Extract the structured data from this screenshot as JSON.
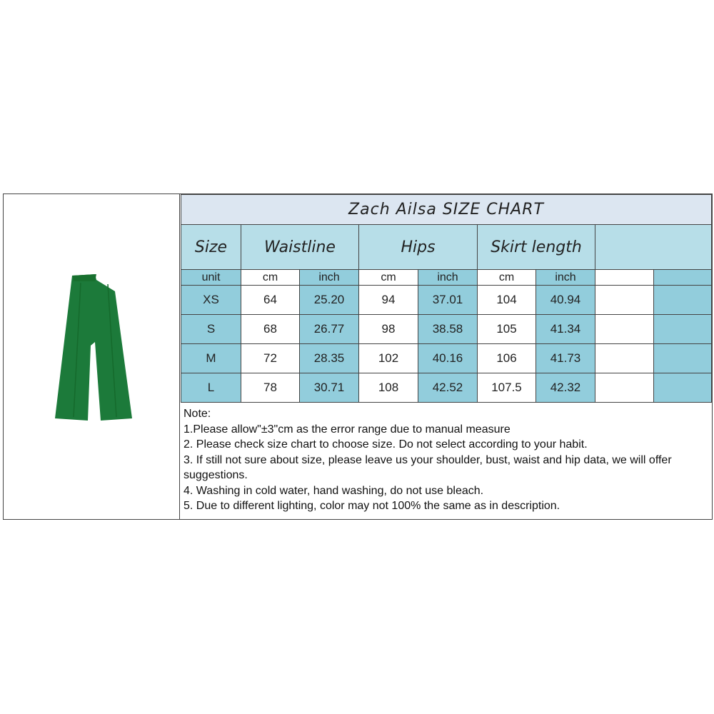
{
  "title": "Zach Ailsa  SIZE CHART",
  "headers": {
    "size": "Size",
    "waist": "Waistline",
    "hips": "Hips",
    "length": "Skirt length"
  },
  "units": {
    "label": "unit",
    "cm": "cm",
    "inch": "inch"
  },
  "rows": [
    {
      "size": "XS",
      "waist_cm": "64",
      "waist_in": "25.20",
      "hips_cm": "94",
      "hips_in": "37.01",
      "len_cm": "104",
      "len_in": "40.94"
    },
    {
      "size": "S",
      "waist_cm": "68",
      "waist_in": "26.77",
      "hips_cm": "98",
      "hips_in": "38.58",
      "len_cm": "105",
      "len_in": "41.34"
    },
    {
      "size": "M",
      "waist_cm": "72",
      "waist_in": "28.35",
      "hips_cm": "102",
      "hips_in": "40.16",
      "len_cm": "106",
      "len_in": "41.73"
    },
    {
      "size": "L",
      "waist_cm": "78",
      "waist_in": "30.71",
      "hips_cm": "108",
      "hips_in": "42.52",
      "len_cm": "107.5",
      "len_in": "42.32"
    }
  ],
  "notes": [
    "Note:",
    "1.Please allow\"±3\"cm as the error range due to manual measure",
    "2. Please check size chart to choose size. Do not select according to your habit.",
    "3. If still not sure about size, please leave us your shoulder, bust, waist and hip data, we will offer",
    "suggestions.",
    "4. Washing in cold water, hand washing, do not use bleach.",
    "5. Due to different lighting, color may not 100% the same as in description."
  ],
  "colors": {
    "product": "#1c7a3a",
    "header_bg": "#b7dee8",
    "alt_col": "#92cddc",
    "title_bg": "#dce6f1"
  }
}
